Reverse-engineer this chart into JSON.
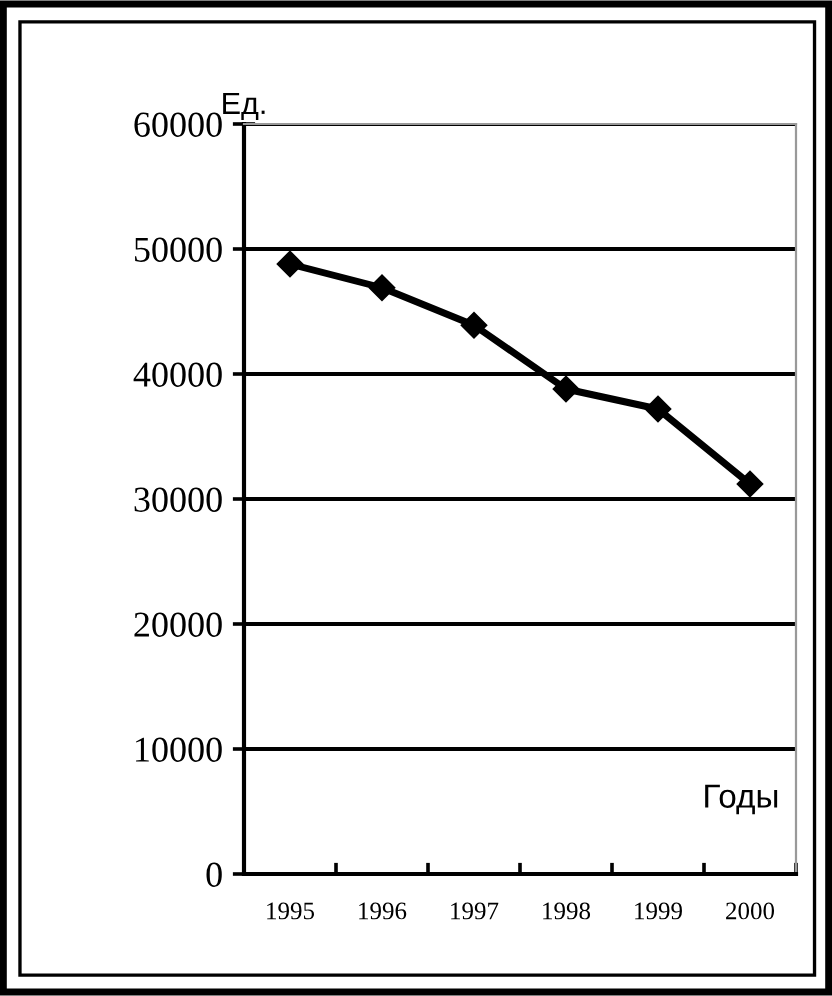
{
  "chart_data": {
    "type": "line",
    "ylabel": "Ед.",
    "xlabel": "Годы",
    "categories": [
      "1995",
      "1996",
      "1997",
      "1998",
      "1999",
      "2000"
    ],
    "series": [
      {
        "color": "#000000",
        "values": [
          48800,
          46900,
          43900,
          38800,
          37200,
          31200
        ]
      }
    ],
    "ylim": [
      0,
      60000
    ],
    "yticks": [
      0,
      10000,
      20000,
      30000,
      40000,
      50000,
      60000
    ],
    "grid": "y",
    "marker": "diamond",
    "line_style": "solid",
    "legend": false
  }
}
